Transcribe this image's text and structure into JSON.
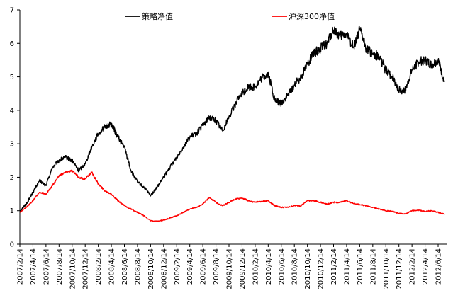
{
  "chart_data": {
    "type": "line",
    "title": "",
    "xlabel": "",
    "ylabel": "",
    "ylim": [
      0,
      7
    ],
    "yticks": [
      0,
      1,
      2,
      3,
      4,
      5,
      6,
      7
    ],
    "legend_position": "top",
    "grid": false,
    "x_tick_labels": [
      "2007/2/14",
      "2007/4/14",
      "2007/6/14",
      "2007/8/14",
      "2007/10/14",
      "2007/12/14",
      "2008/2/14",
      "2008/4/14",
      "2008/6/14",
      "2008/8/14",
      "2008/10/14",
      "2008/12/14",
      "2009/2/14",
      "2009/4/14",
      "2009/6/14",
      "2009/8/14",
      "2009/10/14",
      "2009/12/14",
      "2010/2/14",
      "2010/4/14",
      "2010/6/14",
      "2010/8/14",
      "2010/10/14",
      "2010/12/14",
      "2011/2/14",
      "2011/4/14",
      "2011/6/14",
      "2011/8/14",
      "2011/10/14",
      "2011/12/14",
      "2012/2/14",
      "2012/4/14",
      "2012/6/14"
    ],
    "series": [
      {
        "name": "策略净值",
        "color": "#000000",
        "x": [
          "2007/2/14",
          "2007/3/14",
          "2007/4/14",
          "2007/5/14",
          "2007/6/14",
          "2007/7/14",
          "2007/8/14",
          "2007/9/14",
          "2007/10/14",
          "2007/11/14",
          "2007/12/14",
          "2008/1/14",
          "2008/2/14",
          "2008/3/14",
          "2008/4/14",
          "2008/5/14",
          "2008/6/14",
          "2008/7/14",
          "2008/8/14",
          "2008/9/14",
          "2008/10/14",
          "2008/11/14",
          "2008/12/14",
          "2009/1/14",
          "2009/2/14",
          "2009/3/14",
          "2009/4/14",
          "2009/5/14",
          "2009/6/14",
          "2009/7/14",
          "2009/8/14",
          "2009/9/14",
          "2009/10/14",
          "2009/11/14",
          "2009/12/14",
          "2010/1/14",
          "2010/2/14",
          "2010/3/14",
          "2010/4/14",
          "2010/5/14",
          "2010/6/14",
          "2010/7/14",
          "2010/8/14",
          "2010/9/14",
          "2010/10/14",
          "2010/11/14",
          "2010/12/14",
          "2011/1/14",
          "2011/2/14",
          "2011/3/14",
          "2011/4/14",
          "2011/5/14",
          "2011/6/14",
          "2011/7/14",
          "2011/8/14",
          "2011/9/14",
          "2011/10/14",
          "2011/11/14",
          "2011/12/14",
          "2012/1/14",
          "2012/2/14",
          "2012/3/14",
          "2012/4/14",
          "2012/5/14",
          "2012/6/14",
          "2012/7/14"
        ],
        "values": [
          1.0,
          1.2,
          1.55,
          1.9,
          1.75,
          2.3,
          2.5,
          2.6,
          2.5,
          2.2,
          2.4,
          2.9,
          3.3,
          3.5,
          3.6,
          3.2,
          2.9,
          2.2,
          1.85,
          1.7,
          1.45,
          1.7,
          2.0,
          2.3,
          2.6,
          2.9,
          3.2,
          3.3,
          3.55,
          3.8,
          3.7,
          3.4,
          3.8,
          4.2,
          4.5,
          4.7,
          4.7,
          4.95,
          5.1,
          4.3,
          4.2,
          4.45,
          4.75,
          5.0,
          5.4,
          5.7,
          5.85,
          6.0,
          6.4,
          6.2,
          6.3,
          5.9,
          6.4,
          5.85,
          5.7,
          5.6,
          5.2,
          5.0,
          4.6,
          4.6,
          5.2,
          5.45,
          5.5,
          5.35,
          5.5,
          4.85
        ]
      },
      {
        "name": "沪深300净值",
        "color": "#ff0000",
        "x": [
          "2007/2/14",
          "2007/3/14",
          "2007/4/14",
          "2007/5/14",
          "2007/6/14",
          "2007/7/14",
          "2007/8/14",
          "2007/9/14",
          "2007/10/14",
          "2007/11/14",
          "2007/12/14",
          "2008/1/14",
          "2008/2/14",
          "2008/3/14",
          "2008/4/14",
          "2008/5/14",
          "2008/6/14",
          "2008/7/14",
          "2008/8/14",
          "2008/9/14",
          "2008/10/14",
          "2008/11/14",
          "2008/12/14",
          "2009/1/14",
          "2009/2/14",
          "2009/3/14",
          "2009/4/14",
          "2009/5/14",
          "2009/6/14",
          "2009/7/14",
          "2009/8/14",
          "2009/9/14",
          "2009/10/14",
          "2009/11/14",
          "2009/12/14",
          "2010/1/14",
          "2010/2/14",
          "2010/3/14",
          "2010/4/14",
          "2010/5/14",
          "2010/6/14",
          "2010/7/14",
          "2010/8/14",
          "2010/9/14",
          "2010/10/14",
          "2010/11/14",
          "2010/12/14",
          "2011/1/14",
          "2011/2/14",
          "2011/3/14",
          "2011/4/14",
          "2011/5/14",
          "2011/6/14",
          "2011/7/14",
          "2011/8/14",
          "2011/9/14",
          "2011/10/14",
          "2011/11/14",
          "2011/12/14",
          "2012/1/14",
          "2012/2/14",
          "2012/3/14",
          "2012/4/14",
          "2012/5/14",
          "2012/6/14",
          "2012/7/14"
        ],
        "values": [
          0.95,
          1.1,
          1.3,
          1.55,
          1.5,
          1.75,
          2.05,
          2.15,
          2.2,
          2.0,
          1.95,
          2.15,
          1.8,
          1.6,
          1.5,
          1.3,
          1.15,
          1.05,
          0.95,
          0.85,
          0.7,
          0.68,
          0.72,
          0.78,
          0.85,
          0.95,
          1.05,
          1.1,
          1.2,
          1.4,
          1.25,
          1.15,
          1.25,
          1.35,
          1.38,
          1.3,
          1.25,
          1.28,
          1.3,
          1.15,
          1.1,
          1.1,
          1.15,
          1.15,
          1.3,
          1.3,
          1.25,
          1.2,
          1.25,
          1.25,
          1.3,
          1.22,
          1.18,
          1.15,
          1.1,
          1.05,
          1.0,
          0.98,
          0.92,
          0.9,
          1.0,
          1.02,
          0.98,
          1.0,
          0.95,
          0.9
        ]
      }
    ]
  }
}
